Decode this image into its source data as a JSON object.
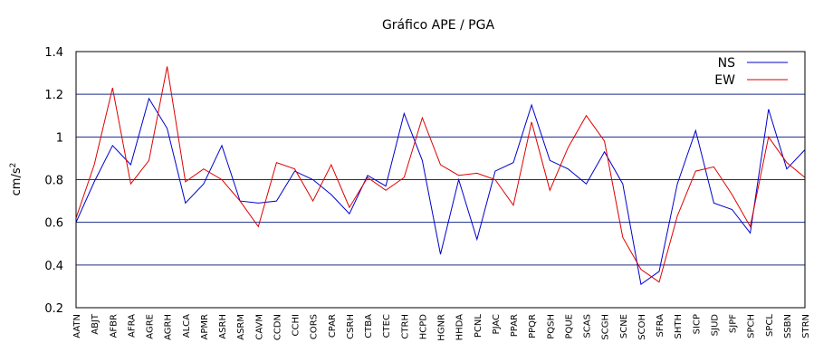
{
  "chart_data": {
    "type": "line",
    "title": "Gráfico  APE / PGA",
    "xlabel": "",
    "ylabel": "cm/s",
    "ylabel_exponent": "2",
    "ylim": [
      0.2,
      1.4
    ],
    "yticks": [
      0.2,
      0.4,
      0.6,
      0.8,
      1,
      1.2,
      1.4
    ],
    "grid": "horizontal",
    "legend_position": "top-right",
    "categories": [
      "AATN",
      "ABJT",
      "AFBR",
      "AFRA",
      "AGRE",
      "AGRH",
      "ALCA",
      "APMR",
      "ASRH",
      "ASRM",
      "CAVM",
      "CCDN",
      "CCHI",
      "CORS",
      "CPAR",
      "CSRH",
      "CTBA",
      "CTEC",
      "CTRH",
      "HCPD",
      "HGNR",
      "HHDA",
      "PCNL",
      "PJAC",
      "PPAR",
      "PPQR",
      "PQSH",
      "PQUE",
      "SCAS",
      "SCGH",
      "SCNE",
      "SCOH",
      "SFRA",
      "SHTH",
      "SICP",
      "SJUD",
      "SJPF",
      "SPCH",
      "SPCL",
      "SSBN",
      "STRN"
    ],
    "series": [
      {
        "name": "NS",
        "color": "#0000cc",
        "values": [
          0.6,
          0.79,
          0.96,
          0.87,
          1.18,
          1.04,
          0.69,
          0.78,
          0.96,
          0.7,
          0.69,
          0.7,
          0.84,
          0.8,
          0.73,
          0.64,
          0.82,
          0.77,
          1.11,
          0.89,
          0.45,
          0.8,
          0.52,
          0.84,
          0.88,
          1.15,
          0.89,
          0.85,
          0.78,
          0.93,
          0.78,
          0.31,
          0.37,
          0.78,
          1.03,
          0.69,
          0.66,
          0.55,
          1.13,
          0.85,
          0.94
        ]
      },
      {
        "name": "EW",
        "color": "#dd0000",
        "values": [
          0.62,
          0.87,
          1.23,
          0.78,
          0.89,
          1.33,
          0.79,
          0.85,
          0.8,
          0.7,
          0.58,
          0.88,
          0.85,
          0.7,
          0.87,
          0.67,
          0.81,
          0.75,
          0.81,
          1.09,
          0.87,
          0.82,
          0.83,
          0.8,
          0.68,
          1.07,
          0.75,
          0.95,
          1.1,
          0.98,
          0.53,
          0.38,
          0.32,
          0.63,
          0.84,
          0.86,
          0.73,
          0.58,
          1.0,
          0.88,
          0.81
        ]
      }
    ]
  }
}
